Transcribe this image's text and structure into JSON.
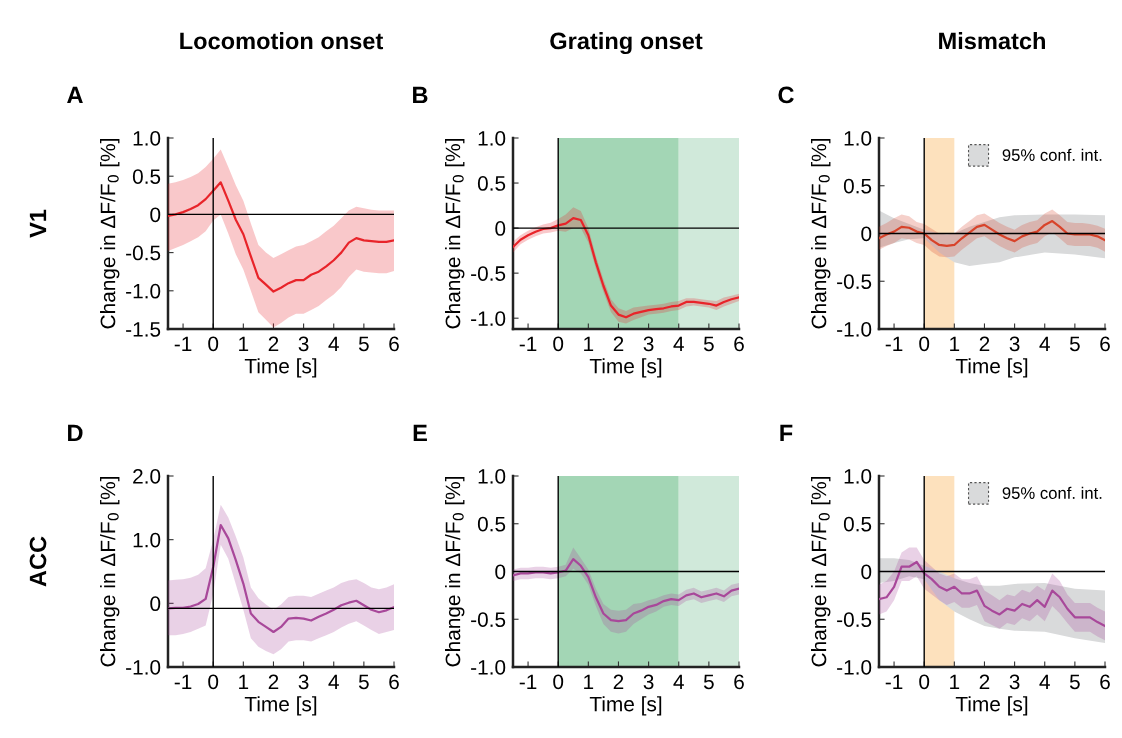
{
  "chart_data": [
    {
      "type": "line",
      "title": "Locomotion onset",
      "xlabel": "Time [s]",
      "ylabel": "Change in ΔF/F$_{0}$ [%]",
      "annotations": [
        "A",
        "V1"
      ],
      "x": [
        -1.5,
        -1.25,
        -1,
        -0.75,
        -0.5,
        -0.25,
        0,
        0.25,
        0.5,
        0.75,
        1,
        1.25,
        1.5,
        1.75,
        2,
        2.25,
        2.5,
        2.75,
        3,
        3.25,
        3.5,
        3.75,
        4,
        4.25,
        4.5,
        4.75,
        5,
        5.25,
        5.5,
        5.75,
        6
      ],
      "series": [
        {
          "color": "#e8242a",
          "values": [
            -0.02,
            0.0,
            0.03,
            0.07,
            0.12,
            0.2,
            0.31,
            0.42,
            0.18,
            -0.07,
            -0.26,
            -0.55,
            -0.83,
            -0.92,
            -1.01,
            -0.96,
            -0.9,
            -0.86,
            -0.86,
            -0.79,
            -0.75,
            -0.68,
            -0.6,
            -0.5,
            -0.37,
            -0.31,
            -0.34,
            -0.35,
            -0.36,
            -0.36,
            -0.34
          ],
          "upper": [
            0.4,
            0.42,
            0.45,
            0.49,
            0.54,
            0.62,
            0.73,
            0.85,
            0.62,
            0.38,
            0.18,
            -0.12,
            -0.4,
            -0.5,
            -0.57,
            -0.52,
            -0.47,
            -0.42,
            -0.4,
            -0.35,
            -0.3,
            -0.22,
            -0.15,
            -0.05,
            0.05,
            0.1,
            0.08,
            0.06,
            0.05,
            0.05,
            0.05
          ],
          "lower": [
            -0.48,
            -0.44,
            -0.4,
            -0.35,
            -0.3,
            -0.22,
            -0.08,
            0.0,
            -0.25,
            -0.52,
            -0.72,
            -1.0,
            -1.28,
            -1.38,
            -1.48,
            -1.42,
            -1.35,
            -1.3,
            -1.3,
            -1.25,
            -1.2,
            -1.12,
            -1.05,
            -0.95,
            -0.82,
            -0.72,
            -0.75,
            -0.76,
            -0.77,
            -0.77,
            -0.74
          ]
        }
      ],
      "xlim": [
        -1.5,
        6
      ],
      "ylim": [
        -1.5,
        1.0
      ],
      "xticks": [
        -1,
        0,
        1,
        2,
        3,
        4,
        5,
        6
      ],
      "yticks": [
        {
          "value": -1.5,
          "label": "-1.5"
        },
        {
          "value": -1,
          "label": "-1.0"
        },
        -0.5,
        0,
        0.5,
        {
          "value": 1,
          "label": "1.0"
        }
      ],
      "ref_lines": [
        {
          "axis": "y",
          "value": 0,
          "color": "#000000"
        },
        {
          "axis": "x",
          "value": 0,
          "color": "#000000"
        }
      ]
    },
    {
      "type": "line",
      "title": "Grating onset",
      "xlabel": "Time [s]",
      "ylabel": "Change in ΔF/F$_{0}$ [%]",
      "annotations": [
        "B"
      ],
      "x": [
        -1.5,
        -1.25,
        -1,
        -0.75,
        -0.5,
        -0.25,
        0,
        0.25,
        0.5,
        0.75,
        1,
        1.25,
        1.5,
        1.75,
        2,
        2.25,
        2.5,
        2.75,
        3,
        3.25,
        3.5,
        3.75,
        4,
        4.25,
        4.5,
        4.75,
        5,
        5.25,
        5.5,
        5.75,
        6
      ],
      "series": [
        {
          "color": "#e8242a",
          "values": [
            -0.21,
            -0.13,
            -0.08,
            -0.04,
            -0.01,
            0.0,
            0.03,
            0.05,
            0.11,
            0.09,
            -0.08,
            -0.38,
            -0.64,
            -0.86,
            -0.96,
            -0.99,
            -0.95,
            -0.93,
            -0.91,
            -0.9,
            -0.89,
            -0.87,
            -0.86,
            -0.82,
            -0.82,
            -0.83,
            -0.84,
            -0.86,
            -0.82,
            -0.79,
            -0.77
          ],
          "upper": [
            -0.15,
            -0.08,
            -0.03,
            0.01,
            0.04,
            0.06,
            0.1,
            0.15,
            0.23,
            0.19,
            0.0,
            -0.31,
            -0.57,
            -0.79,
            -0.89,
            -0.92,
            -0.88,
            -0.87,
            -0.86,
            -0.85,
            -0.84,
            -0.82,
            -0.81,
            -0.78,
            -0.78,
            -0.79,
            -0.8,
            -0.81,
            -0.77,
            -0.75,
            -0.73
          ],
          "lower": [
            -0.27,
            -0.18,
            -0.13,
            -0.09,
            -0.06,
            -0.05,
            -0.03,
            -0.04,
            0.0,
            0.0,
            -0.16,
            -0.45,
            -0.71,
            -0.93,
            -1.04,
            -1.06,
            -1.02,
            -0.99,
            -0.96,
            -0.95,
            -0.94,
            -0.92,
            -0.91,
            -0.87,
            -0.86,
            -0.87,
            -0.88,
            -0.91,
            -0.87,
            -0.84,
            -0.81
          ]
        }
      ],
      "xlim": [
        -1.5,
        6
      ],
      "ylim": [
        -1.12,
        1.0
      ],
      "xticks": [
        -1,
        0,
        1,
        2,
        3,
        4,
        5,
        6
      ],
      "yticks": [
        {
          "value": -1,
          "label": "-1.0"
        },
        -0.5,
        0,
        0.5,
        {
          "value": 1,
          "label": "1.0"
        }
      ],
      "ref_lines": [
        {
          "axis": "y",
          "value": 0,
          "color": "#000000"
        },
        {
          "axis": "x",
          "value": 0,
          "color": "#000000"
        }
      ],
      "bands": [
        {
          "axis": "x",
          "from": 0,
          "to": 4,
          "color": "#a3d6b5"
        },
        {
          "axis": "x",
          "from": 4,
          "to": 6,
          "color": "#d0e9da"
        }
      ]
    },
    {
      "type": "line",
      "title": "Mismatch",
      "xlabel": "Time [s]",
      "ylabel": "Change in ΔF/F$_{0}$ [%]",
      "annotations": [
        "C"
      ],
      "legend": "top right",
      "x": [
        -1.5,
        -1.25,
        -1,
        -0.75,
        -0.5,
        -0.25,
        0,
        0.25,
        0.5,
        0.75,
        1,
        1.25,
        1.5,
        1.75,
        2,
        2.25,
        2.5,
        2.75,
        3,
        3.25,
        3.5,
        3.75,
        4,
        4.25,
        4.5,
        4.75,
        5,
        5.25,
        5.5,
        5.75,
        6
      ],
      "series": [
        {
          "name": "95% conf. int.",
          "type": "line",
          "color": "#d9dadb",
          "x": [
            -1.5,
            -1,
            -0.5,
            0,
            0.5,
            1,
            1.5,
            2,
            2.5,
            3,
            4,
            5,
            6
          ],
          "values": [
            null,
            null,
            null,
            null,
            null,
            null,
            null,
            null,
            null,
            null,
            null,
            null,
            null
          ],
          "upper": [
            0.24,
            0.16,
            0.1,
            0.04,
            0.0,
            0.0,
            0.07,
            0.12,
            0.17,
            0.19,
            0.2,
            0.2,
            0.19
          ],
          "lower": [
            -0.15,
            -0.1,
            -0.06,
            -0.05,
            -0.2,
            -0.3,
            -0.34,
            -0.32,
            -0.3,
            -0.25,
            -0.2,
            -0.22,
            -0.26
          ]
        },
        {
          "color": "#d8432a",
          "values": [
            -0.05,
            -0.01,
            0.02,
            0.07,
            0.06,
            0.02,
            0.0,
            -0.07,
            -0.12,
            -0.13,
            -0.12,
            -0.05,
            0.01,
            0.07,
            0.09,
            0.04,
            -0.01,
            -0.05,
            -0.08,
            -0.03,
            0.0,
            0.02,
            0.09,
            0.13,
            0.07,
            0.0,
            -0.01,
            -0.01,
            -0.01,
            -0.03,
            -0.07
          ],
          "upper": [
            0.07,
            0.11,
            0.16,
            0.2,
            0.18,
            0.12,
            0.1,
            0.05,
            0.0,
            -0.01,
            0.0,
            0.07,
            0.13,
            0.19,
            0.21,
            0.16,
            0.11,
            0.07,
            0.04,
            0.09,
            0.12,
            0.14,
            0.21,
            0.25,
            0.19,
            0.12,
            0.11,
            0.11,
            0.1,
            0.08,
            0.05
          ],
          "lower": [
            -0.17,
            -0.13,
            -0.1,
            -0.05,
            -0.06,
            -0.1,
            -0.12,
            -0.19,
            -0.24,
            -0.25,
            -0.24,
            -0.17,
            -0.11,
            -0.05,
            -0.03,
            -0.08,
            -0.13,
            -0.17,
            -0.2,
            -0.15,
            -0.12,
            -0.1,
            -0.03,
            0.01,
            -0.05,
            -0.12,
            -0.13,
            -0.13,
            -0.13,
            -0.15,
            -0.19
          ]
        }
      ],
      "xlim": [
        -1.5,
        6
      ],
      "ylim": [
        -1.0,
        1.0
      ],
      "xticks": [
        -1,
        0,
        1,
        2,
        3,
        4,
        5,
        6
      ],
      "yticks": [
        {
          "value": -1,
          "label": "-1.0"
        },
        -0.5,
        0,
        0.5,
        {
          "value": 1,
          "label": "1.0"
        }
      ],
      "ref_lines": [
        {
          "axis": "y",
          "value": 0,
          "color": "#000000"
        },
        {
          "axis": "x",
          "value": 0,
          "color": "#000000"
        }
      ],
      "bands": [
        {
          "axis": "x",
          "from": 0,
          "to": 1,
          "color": "#fde1bd"
        }
      ]
    },
    {
      "type": "line",
      "xlabel": "Time [s]",
      "ylabel": "Change in ΔF/F$_{0}$ [%]",
      "annotations": [
        "D",
        "ACC"
      ],
      "x": [
        -1.5,
        -1.25,
        -1,
        -0.75,
        -0.5,
        -0.25,
        0,
        0.25,
        0.5,
        0.75,
        1,
        1.25,
        1.5,
        1.75,
        2,
        2.25,
        2.5,
        2.75,
        3,
        3.25,
        3.5,
        3.75,
        4,
        4.25,
        4.5,
        4.75,
        5,
        5.25,
        5.5,
        5.75,
        6
      ],
      "series": [
        {
          "color": "#a8489a",
          "values": [
            -0.08,
            -0.07,
            -0.07,
            -0.05,
            -0.01,
            0.07,
            0.57,
            1.23,
            1.02,
            0.68,
            0.31,
            -0.16,
            -0.29,
            -0.37,
            -0.45,
            -0.37,
            -0.24,
            -0.23,
            -0.24,
            -0.27,
            -0.21,
            -0.16,
            -0.1,
            -0.03,
            0.01,
            0.04,
            -0.03,
            -0.1,
            -0.14,
            -0.11,
            -0.06
          ],
          "upper": [
            0.36,
            0.37,
            0.38,
            0.4,
            0.45,
            0.55,
            1.0,
            1.55,
            1.35,
            1.05,
            0.72,
            0.25,
            0.08,
            -0.02,
            -0.1,
            -0.02,
            0.1,
            0.12,
            0.12,
            0.1,
            0.15,
            0.2,
            0.25,
            0.32,
            0.36,
            0.38,
            0.32,
            0.25,
            0.22,
            0.25,
            0.3
          ],
          "lower": [
            -0.5,
            -0.5,
            -0.48,
            -0.45,
            -0.4,
            -0.35,
            0.15,
            0.92,
            0.7,
            0.3,
            -0.1,
            -0.55,
            -0.68,
            -0.75,
            -0.8,
            -0.72,
            -0.6,
            -0.58,
            -0.58,
            -0.6,
            -0.55,
            -0.5,
            -0.45,
            -0.38,
            -0.32,
            -0.28,
            -0.35,
            -0.42,
            -0.48,
            -0.45,
            -0.42
          ]
        }
      ],
      "xlim": [
        -1.5,
        6
      ],
      "ylim": [
        -1.0,
        2.0
      ],
      "xticks": [
        -1,
        0,
        1,
        2,
        3,
        4,
        5,
        6
      ],
      "yticks": [
        {
          "value": -1,
          "label": "-1.0"
        },
        0,
        {
          "value": 1,
          "label": "1.0"
        },
        {
          "value": 2,
          "label": "2.0"
        }
      ],
      "ref_lines": [
        {
          "axis": "y",
          "value": -0.08,
          "color": "#000000"
        },
        {
          "axis": "x",
          "value": 0,
          "color": "#000000"
        }
      ]
    },
    {
      "type": "line",
      "xlabel": "Time [s]",
      "ylabel": "Change in ΔF/F$_{0}$ [%]",
      "annotations": [
        "E"
      ],
      "x": [
        -1.5,
        -1.25,
        -1,
        -0.75,
        -0.5,
        -0.25,
        0,
        0.25,
        0.5,
        0.75,
        1,
        1.25,
        1.5,
        1.75,
        2,
        2.25,
        2.5,
        2.75,
        3,
        3.25,
        3.5,
        3.75,
        4,
        4.25,
        4.5,
        4.75,
        5,
        5.25,
        5.5,
        5.75,
        6
      ],
      "series": [
        {
          "color": "#a8489a",
          "values": [
            -0.04,
            -0.02,
            -0.02,
            -0.01,
            -0.01,
            -0.02,
            -0.01,
            0.01,
            0.13,
            0.06,
            -0.06,
            -0.27,
            -0.44,
            -0.51,
            -0.52,
            -0.51,
            -0.44,
            -0.41,
            -0.37,
            -0.35,
            -0.31,
            -0.29,
            -0.3,
            -0.25,
            -0.23,
            -0.27,
            -0.25,
            -0.23,
            -0.26,
            -0.2,
            -0.18
          ],
          "upper": [
            0.02,
            0.04,
            0.04,
            0.05,
            0.05,
            0.04,
            0.05,
            0.07,
            0.25,
            0.14,
            0.02,
            -0.18,
            -0.34,
            -0.4,
            -0.41,
            -0.4,
            -0.34,
            -0.33,
            -0.3,
            -0.28,
            -0.25,
            -0.23,
            -0.24,
            -0.19,
            -0.17,
            -0.21,
            -0.19,
            -0.17,
            -0.2,
            -0.14,
            -0.12
          ],
          "lower": [
            -0.1,
            -0.08,
            -0.08,
            -0.07,
            -0.07,
            -0.08,
            -0.07,
            -0.05,
            0.03,
            -0.02,
            -0.14,
            -0.36,
            -0.55,
            -0.63,
            -0.65,
            -0.63,
            -0.55,
            -0.5,
            -0.45,
            -0.42,
            -0.37,
            -0.35,
            -0.36,
            -0.31,
            -0.29,
            -0.33,
            -0.31,
            -0.29,
            -0.32,
            -0.26,
            -0.24
          ]
        }
      ],
      "xlim": [
        -1.5,
        6
      ],
      "ylim": [
        -1.0,
        1.0
      ],
      "xticks": [
        -1,
        0,
        1,
        2,
        3,
        4,
        5,
        6
      ],
      "yticks": [
        {
          "value": -1,
          "label": "-1.0"
        },
        -0.5,
        0,
        0.5,
        {
          "value": 1,
          "label": "1.0"
        }
      ],
      "ref_lines": [
        {
          "axis": "y",
          "value": 0,
          "color": "#000000"
        },
        {
          "axis": "x",
          "value": 0,
          "color": "#000000"
        }
      ],
      "bands": [
        {
          "axis": "x",
          "from": 0,
          "to": 4,
          "color": "#a3d6b5"
        },
        {
          "axis": "x",
          "from": 4,
          "to": 6,
          "color": "#d0e9da"
        }
      ]
    },
    {
      "type": "line",
      "xlabel": "Time [s]",
      "ylabel": "Change in ΔF/F$_{0}$ [%]",
      "annotations": [
        "F"
      ],
      "legend": "top right",
      "x": [
        -1.5,
        -1.25,
        -1,
        -0.75,
        -0.5,
        -0.25,
        0,
        0.25,
        0.5,
        0.75,
        1,
        1.25,
        1.5,
        1.75,
        2,
        2.25,
        2.5,
        2.75,
        3,
        3.25,
        3.5,
        3.75,
        4,
        4.25,
        4.5,
        4.75,
        5,
        5.25,
        5.5,
        5.75,
        6
      ],
      "series": [
        {
          "name": "95% conf. int.",
          "type": "line",
          "color": "#d9dadb",
          "x": [
            -1.5,
            -1,
            -0.5,
            0,
            0.5,
            1,
            1.5,
            2,
            2.5,
            3,
            4,
            5,
            6
          ],
          "values": [
            null,
            null,
            null,
            null,
            null,
            null,
            null,
            null,
            null,
            null,
            null,
            null,
            null
          ],
          "upper": [
            0.14,
            0.14,
            0.12,
            0.06,
            0.0,
            -0.07,
            -0.12,
            -0.15,
            -0.15,
            -0.13,
            -0.12,
            -0.18,
            -0.2
          ],
          "lower": [
            -0.12,
            -0.1,
            -0.05,
            -0.08,
            -0.3,
            -0.42,
            -0.5,
            -0.57,
            -0.6,
            -0.62,
            -0.63,
            -0.7,
            -0.75
          ]
        },
        {
          "color": "#a8489a",
          "values": [
            -0.29,
            -0.27,
            -0.16,
            0.05,
            0.05,
            0.1,
            -0.02,
            -0.08,
            -0.16,
            -0.2,
            -0.16,
            -0.23,
            -0.23,
            -0.2,
            -0.36,
            -0.41,
            -0.45,
            -0.39,
            -0.41,
            -0.34,
            -0.37,
            -0.3,
            -0.37,
            -0.2,
            -0.27,
            -0.39,
            -0.48,
            -0.48,
            -0.48,
            -0.53,
            -0.57
          ],
          "upper": [
            -0.14,
            -0.1,
            0.0,
            0.2,
            0.25,
            0.25,
            0.12,
            0.05,
            -0.02,
            -0.05,
            -0.02,
            -0.08,
            -0.08,
            -0.05,
            -0.2,
            -0.25,
            -0.3,
            -0.24,
            -0.26,
            -0.19,
            -0.22,
            -0.15,
            -0.2,
            -0.02,
            -0.1,
            -0.24,
            -0.33,
            -0.33,
            -0.33,
            -0.38,
            -0.42
          ],
          "lower": [
            -0.45,
            -0.42,
            -0.3,
            -0.1,
            -0.1,
            -0.05,
            -0.18,
            -0.24,
            -0.3,
            -0.35,
            -0.32,
            -0.38,
            -0.38,
            -0.35,
            -0.52,
            -0.56,
            -0.6,
            -0.54,
            -0.56,
            -0.49,
            -0.52,
            -0.45,
            -0.52,
            -0.36,
            -0.44,
            -0.54,
            -0.63,
            -0.63,
            -0.63,
            -0.68,
            -0.72
          ]
        }
      ],
      "xlim": [
        -1.5,
        6
      ],
      "ylim": [
        -1.0,
        1.0
      ],
      "xticks": [
        -1,
        0,
        1,
        2,
        3,
        4,
        5,
        6
      ],
      "yticks": [
        {
          "value": -1,
          "label": "-1.0"
        },
        -0.5,
        0,
        0.5,
        {
          "value": 1,
          "label": "1.0"
        }
      ],
      "ref_lines": [
        {
          "axis": "y",
          "value": 0,
          "color": "#000000"
        },
        {
          "axis": "x",
          "value": 0,
          "color": "#000000"
        }
      ],
      "bands": [
        {
          "axis": "x",
          "from": 0,
          "to": 1,
          "color": "#fde1bd"
        }
      ]
    }
  ]
}
